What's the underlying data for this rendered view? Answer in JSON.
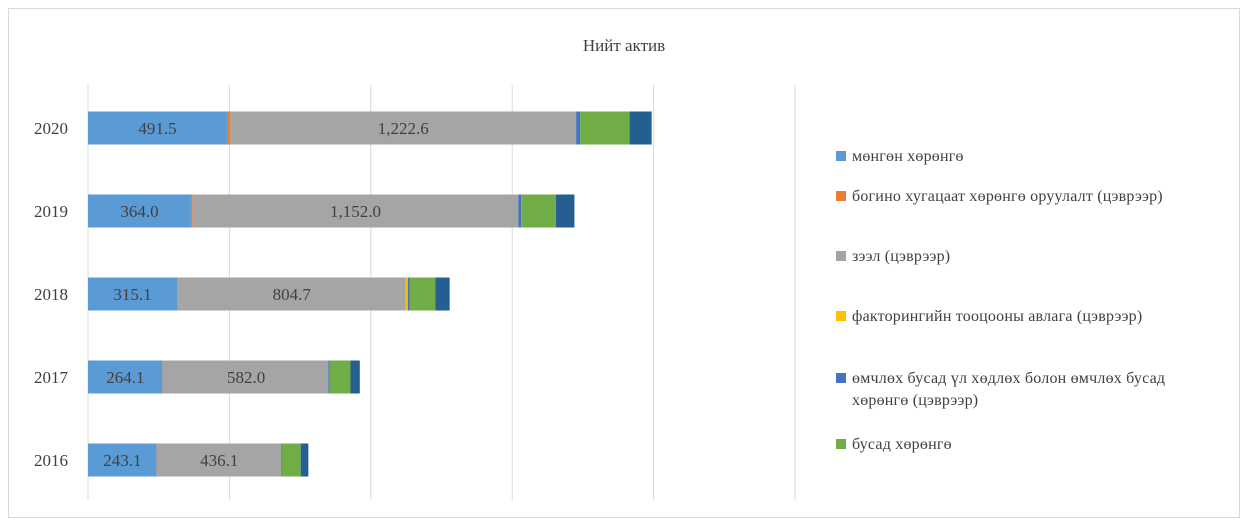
{
  "chart_data": {
    "type": "bar",
    "orientation": "horizontal",
    "stacked": true,
    "title": "Нийт актив",
    "categories": [
      "2020",
      "2019",
      "2018",
      "2017",
      "2016"
    ],
    "series": [
      {
        "name": "мөнгөн хөрөнгө",
        "color": "#5b9bd5",
        "values": [
          491.5,
          364.0,
          315.1,
          264.1,
          243.1
        ],
        "labels": [
          "491.5",
          "364.0",
          "315.1",
          "264.1",
          "243.1"
        ]
      },
      {
        "name": "богино хугацаат хөрөнгө оруулалт (цэврээр)",
        "color": "#ed7d31",
        "values": [
          12,
          6,
          3,
          4,
          3
        ]
      },
      {
        "name": "зээл (цэврээр)",
        "color": "#a5a5a5",
        "values": [
          1222.6,
          1152.0,
          804.7,
          582.0,
          436.1
        ],
        "labels": [
          "1,222.6",
          "1,152.0",
          "804.7",
          "582.0",
          "436.1"
        ]
      },
      {
        "name": "факторингийн тооцооны авлага (цэврээр)",
        "color": "#ffc000",
        "values": [
          0,
          0,
          8,
          0,
          0
        ]
      },
      {
        "name": "өмчлөх бусад үл хөдлөх болон өмчлөх бусад хөрөнгө (цэврээр)",
        "color": "#4472c4",
        "values": [
          14,
          10,
          6,
          5,
          3
        ]
      },
      {
        "name": "бусад хөрөнгө",
        "color": "#70ad47",
        "values": [
          175,
          123,
          92,
          73,
          67
        ]
      },
      {
        "name": "",
        "color": "#255e91",
        "values": [
          78,
          65,
          50,
          33,
          27
        ]
      }
    ],
    "xlim": [
      0,
      2500
    ],
    "grid": true,
    "legend_position": "right"
  }
}
